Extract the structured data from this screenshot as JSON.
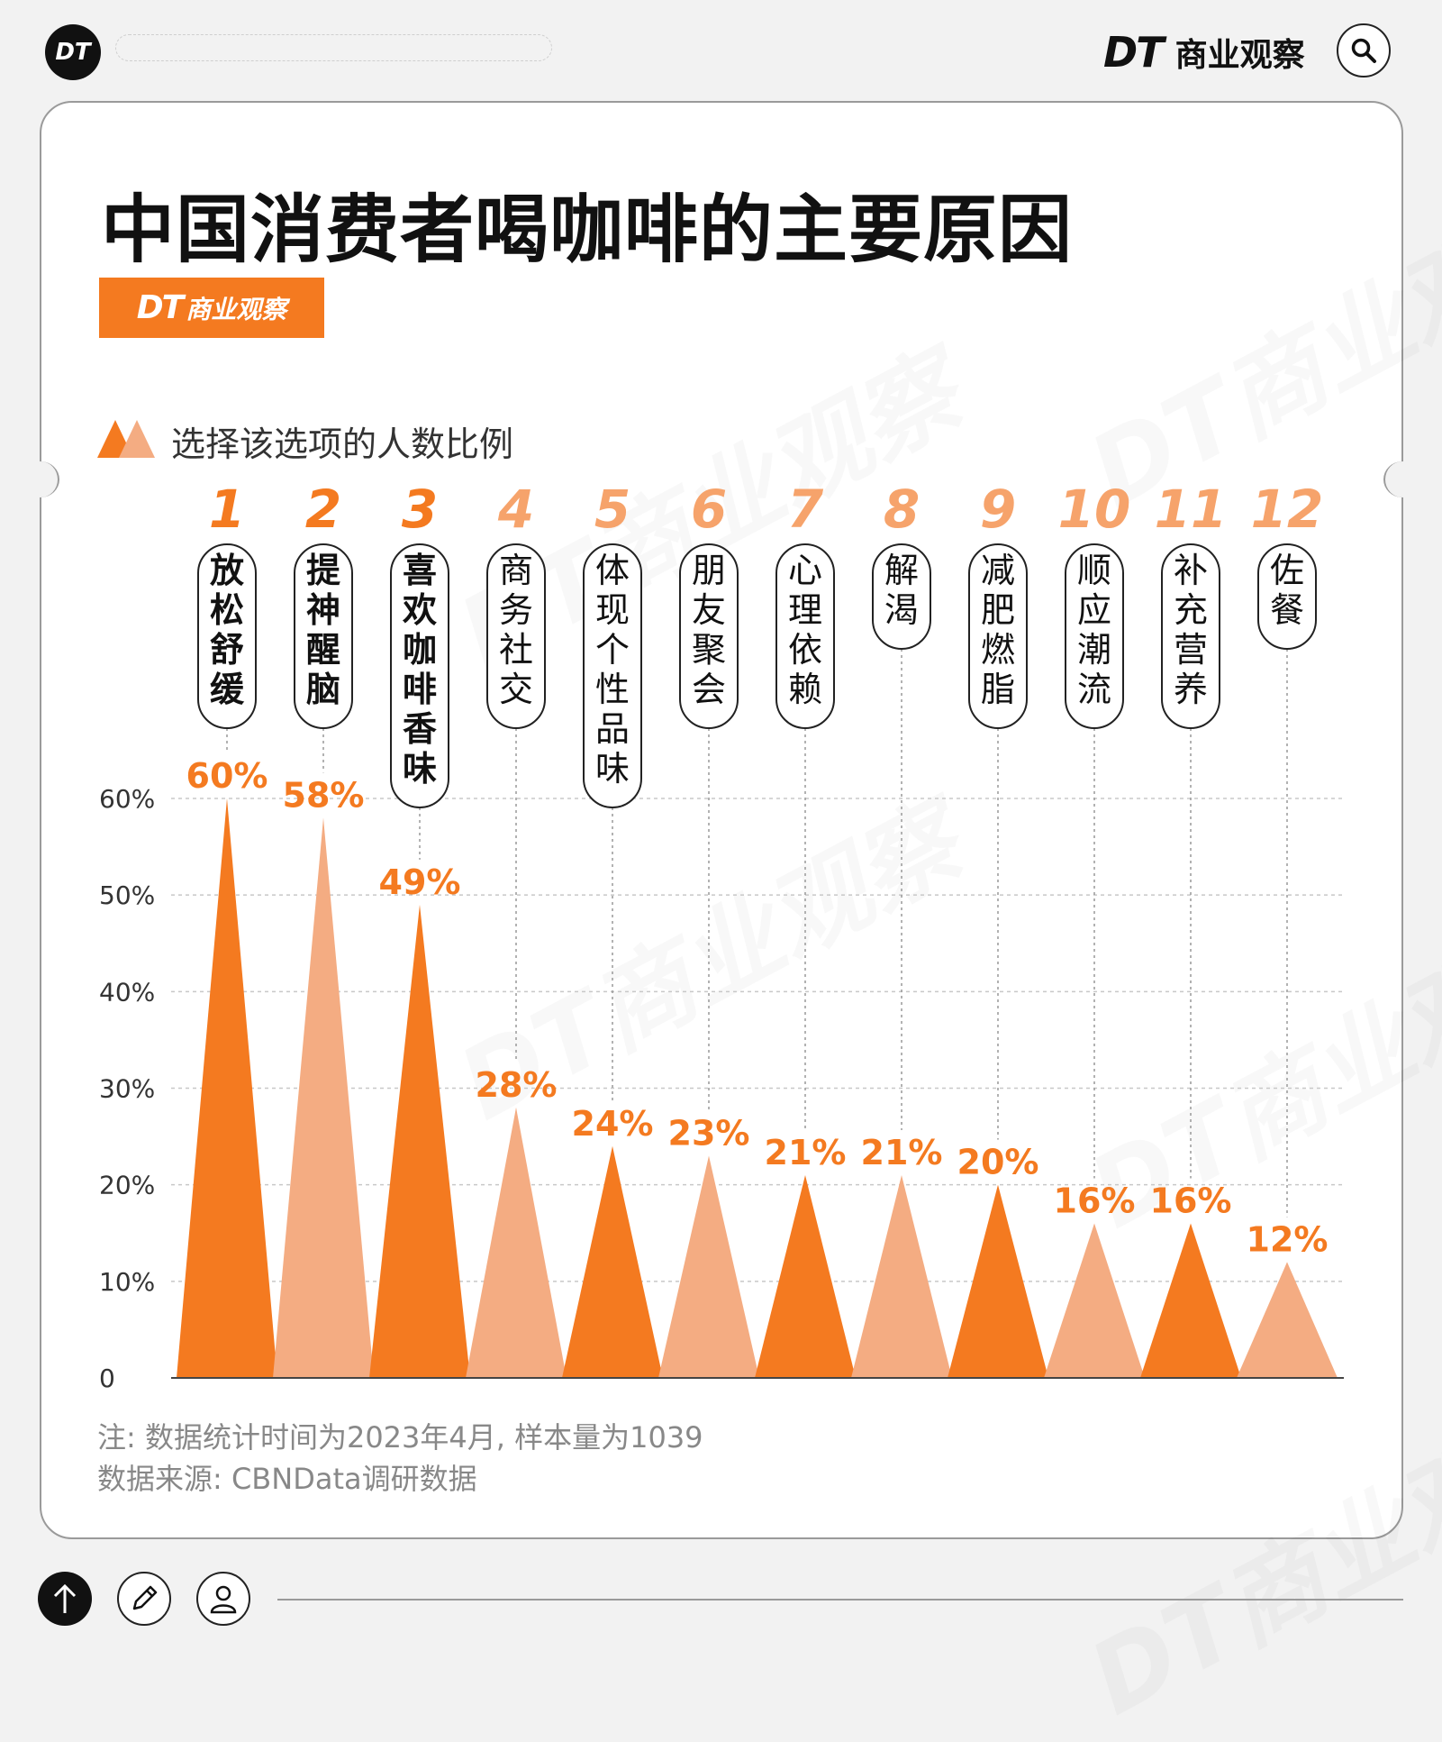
{
  "topbar": {
    "logo": "DT",
    "brand_dt": "DT",
    "brand_name": "商业观察"
  },
  "title": "中国消费者喝咖啡的主要原因",
  "badge": {
    "dt": "DT",
    "name": "商业观察"
  },
  "legend": "选择该选项的人数比例",
  "colors": {
    "dark": "#f47a20",
    "light": "#f4ac82",
    "text_accent": "#f47a20",
    "rank_muted": "#f6a36b"
  },
  "chart_data": {
    "type": "area",
    "categories": [
      "放松舒缓",
      "提神醒脑",
      "喜欢咖啡香味",
      "商务社交",
      "体现个性品味",
      "朋友聚会",
      "心理依赖",
      "解渴",
      "减肥燃脂",
      "顺应潮流",
      "补充营养",
      "佐餐"
    ],
    "ranks": [
      "1",
      "2",
      "3",
      "4",
      "5",
      "6",
      "7",
      "8",
      "9",
      "10",
      "11",
      "12"
    ],
    "values": [
      60,
      58,
      49,
      28,
      24,
      23,
      21,
      21,
      20,
      16,
      16,
      12
    ],
    "value_labels": [
      "60%",
      "58%",
      "49%",
      "28%",
      "24%",
      "23%",
      "21%",
      "21%",
      "20%",
      "16%",
      "16%",
      "12%"
    ],
    "y_ticks": [
      "0",
      "10%",
      "20%",
      "30%",
      "40%",
      "50%",
      "60%"
    ],
    "ylim": [
      0,
      60
    ],
    "grid": true
  },
  "note": "注: 数据统计时间为2023年4月, 样本量为1039",
  "source": "数据来源: CBNData调研数据",
  "watermark": "DT商业观察"
}
